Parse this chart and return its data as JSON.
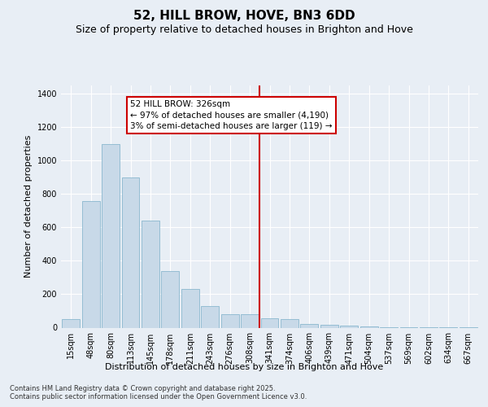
{
  "title": "52, HILL BROW, HOVE, BN3 6DD",
  "subtitle": "Size of property relative to detached houses in Brighton and Hove",
  "xlabel": "Distribution of detached houses by size in Brighton and Hove",
  "ylabel": "Number of detached properties",
  "bar_color": "#c8d9e8",
  "bar_edge_color": "#7aaec8",
  "vline_color": "#cc0000",
  "annotation_text": "52 HILL BROW: 326sqm\n← 97% of detached houses are smaller (4,190)\n3% of semi-detached houses are larger (119) →",
  "categories": [
    "15sqm",
    "48sqm",
    "80sqm",
    "113sqm",
    "145sqm",
    "178sqm",
    "211sqm",
    "243sqm",
    "276sqm",
    "308sqm",
    "341sqm",
    "374sqm",
    "406sqm",
    "439sqm",
    "471sqm",
    "504sqm",
    "537sqm",
    "569sqm",
    "602sqm",
    "634sqm",
    "667sqm"
  ],
  "values": [
    50,
    760,
    1100,
    900,
    640,
    340,
    230,
    130,
    80,
    80,
    55,
    50,
    20,
    15,
    10,
    5,
    3,
    3,
    2,
    1,
    1
  ],
  "ylim": [
    0,
    1450
  ],
  "yticks": [
    0,
    200,
    400,
    600,
    800,
    1000,
    1200,
    1400
  ],
  "background_color": "#e8eef5",
  "footer": "Contains HM Land Registry data © Crown copyright and database right 2025.\nContains public sector information licensed under the Open Government Licence v3.0.",
  "title_fontsize": 11,
  "subtitle_fontsize": 9,
  "axis_label_fontsize": 8,
  "tick_fontsize": 7,
  "footer_fontsize": 6,
  "annotation_fontsize": 7.5,
  "vline_pos": 9.5
}
